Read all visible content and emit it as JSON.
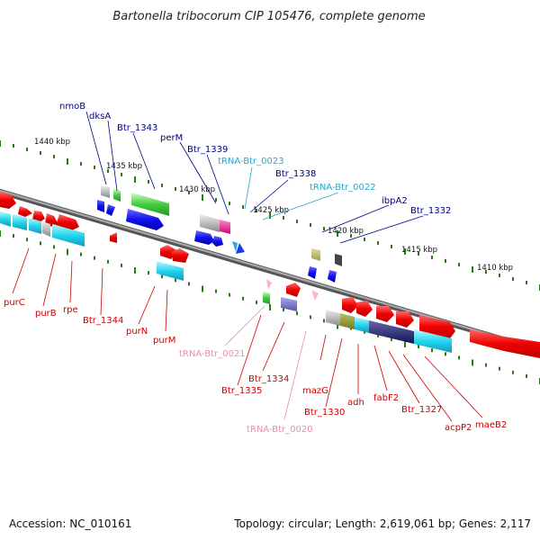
{
  "title": "Bartonella tribocorum CIP 105476, complete genome",
  "footer": {
    "accession": "Accession: NC_010161",
    "summary": "Topology: circular; Length: 2,619,061 bp; Genes: 2,117"
  },
  "ticks": [
    "1440 kbp",
    "1435 kbp",
    "1430 kbp",
    "1425 kbp",
    "1420 kbp",
    "1415 kbp",
    "1410 kbp"
  ],
  "labels_top": [
    "nmoB",
    "dksA",
    "Btr_1343",
    "perM",
    "Btr_1339",
    "tRNA-Btr_0023",
    "Btr_1338",
    "tRNA-Btr_0022",
    "ibpA2",
    "Btr_1332"
  ],
  "labels_bottom": [
    "purC",
    "purB",
    "rpe",
    "Btr_1344",
    "purN",
    "purM",
    "tRNA-Btr_0021",
    "Btr_1335",
    "Btr_1334",
    "tRNA-Btr_0020",
    "mazG",
    "Btr_1330",
    "adh",
    "fabF2",
    "Btr_1327",
    "acpP2",
    "maeB2"
  ],
  "colors": {
    "forward_label": "#00008b",
    "reverse_label": "#cc0000",
    "trna_top": "#22aacc",
    "trna_bottom": "#ee88bb",
    "backbone": "#888888",
    "tick_dots": "#2a7a1a"
  }
}
